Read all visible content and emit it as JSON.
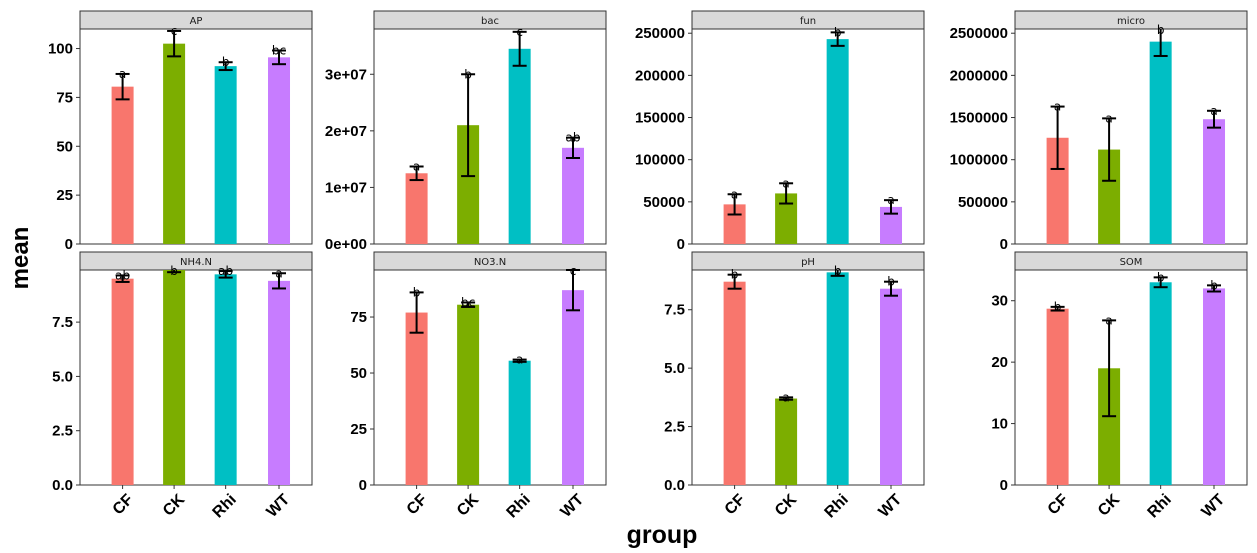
{
  "chart_data": {
    "type": "bar",
    "xlabel": "group",
    "ylabel": "mean",
    "categories": [
      "CF",
      "CK",
      "Rhi",
      "WT"
    ],
    "colors": [
      "#F8766D",
      "#7CAE00",
      "#00BFC4",
      "#C77CFF"
    ],
    "panels": [
      {
        "title": "AP",
        "values": [
          80.5,
          102.5,
          91,
          95.5
        ],
        "errors": [
          6.5,
          6.5,
          2,
          3.5
        ],
        "letters": [
          "a",
          "c",
          "b",
          "bc"
        ],
        "ylim": [
          0,
          110
        ],
        "ticks": [
          0,
          25,
          50,
          75,
          100
        ],
        "tick_labels": [
          "0",
          "25",
          "50",
          "75",
          "100"
        ]
      },
      {
        "title": "bac",
        "values": [
          12500000,
          21000000,
          34500000,
          17000000
        ],
        "errors": [
          1200000,
          9000000,
          3000000,
          1800000
        ],
        "letters": [
          "a",
          "b",
          "c",
          "ab"
        ],
        "ylim": [
          0,
          38000000
        ],
        "ticks": [
          0,
          10000000,
          20000000,
          30000000
        ],
        "tick_labels": [
          "0e+00",
          "1e+07",
          "2e+07",
          "3e+07"
        ]
      },
      {
        "title": "fun",
        "values": [
          47000,
          60000,
          243000,
          44000
        ],
        "errors": [
          12000,
          12000,
          8000,
          8000
        ],
        "letters": [
          "a",
          "a",
          "b",
          "a"
        ],
        "ylim": [
          0,
          255000
        ],
        "ticks": [
          0,
          50000,
          100000,
          150000,
          200000,
          250000
        ],
        "tick_labels": [
          "0",
          "50000",
          "100000",
          "150000",
          "200000",
          "250000"
        ]
      },
      {
        "title": "micro",
        "values": [
          1260000,
          1120000,
          2400000,
          1480000
        ],
        "errors": [
          370000,
          370000,
          170000,
          100000
        ],
        "letters": [
          "a",
          "a",
          "b",
          "a"
        ],
        "ylim": [
          0,
          2550000
        ],
        "ticks": [
          0,
          500000,
          1000000,
          1500000,
          2000000,
          2500000
        ],
        "tick_labels": [
          "0",
          "500000",
          "1000000",
          "1500000",
          "2000000",
          "2500000"
        ]
      },
      {
        "title": "NH4.N",
        "values": [
          9.5,
          9.9,
          9.7,
          9.4
        ],
        "errors": [
          0.15,
          0.1,
          0.15,
          0.35
        ],
        "letters": [
          "ab",
          "b",
          "ab",
          "a"
        ],
        "ylim": [
          0,
          9.9
        ],
        "ticks": [
          0,
          2.5,
          5,
          7.5
        ],
        "tick_labels": [
          "0.0",
          "2.5",
          "5.0",
          "7.5"
        ]
      },
      {
        "title": "NO3.N",
        "values": [
          77,
          80.5,
          55.5,
          87
        ],
        "errors": [
          9,
          1,
          0.5,
          9
        ],
        "letters": [
          "b",
          "bc",
          "a",
          "c"
        ],
        "ylim": [
          0,
          96
        ],
        "ticks": [
          0,
          25,
          50,
          75
        ],
        "tick_labels": [
          "0",
          "25",
          "50",
          "75"
        ]
      },
      {
        "title": "pH",
        "values": [
          8.7,
          3.7,
          9.1,
          8.4
        ],
        "errors": [
          0.3,
          0.05,
          0.15,
          0.3
        ],
        "letters": [
          "b",
          "a",
          "b",
          "b"
        ],
        "ylim": [
          0,
          9.2
        ],
        "ticks": [
          0,
          2.5,
          5,
          7.5
        ],
        "tick_labels": [
          "0.0",
          "2.5",
          "5.0",
          "7.5"
        ]
      },
      {
        "title": "SOM",
        "values": [
          28.7,
          19,
          33,
          32
        ],
        "errors": [
          0.3,
          7.8,
          0.8,
          0.5
        ],
        "letters": [
          "b",
          "a",
          "b",
          "b"
        ],
        "ylim": [
          0,
          35
        ],
        "ticks": [
          0,
          10,
          20,
          30
        ],
        "tick_labels": [
          "0",
          "10",
          "20",
          "30"
        ]
      }
    ]
  }
}
